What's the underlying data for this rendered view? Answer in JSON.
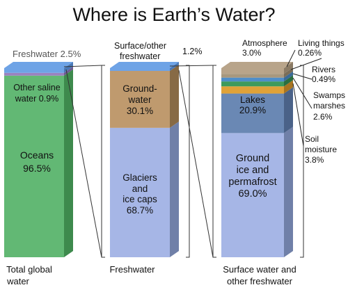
{
  "title": "Where is Earth’s Water?",
  "chart_data": {
    "type": "bar",
    "title": "Where is Earth’s Water?",
    "unit": "%",
    "bars": [
      {
        "name": "Total global water",
        "label_lines": [
          "Total global",
          "water"
        ],
        "segments": [
          {
            "name": "Oceans",
            "value": 96.5,
            "label_lines": [
              "Oceans",
              "96.5%"
            ],
            "label_inside": true,
            "front": "#62b874",
            "side": "#3e8a4d",
            "top": null
          },
          {
            "name": "Other saline water",
            "value": 0.9,
            "label_lines": [
              "Other saline",
              "water 0.9%"
            ],
            "label_inside": true,
            "front": "#9a82bf",
            "side": "#6e5a92",
            "top": null
          },
          {
            "name": "Freshwater",
            "value": 2.5,
            "label_lines": [
              "Freshwater 2.5%"
            ],
            "label_inside": false,
            "front": "#6ea3e6",
            "side": "#4a78b6",
            "top": "#6ea3e6"
          }
        ]
      },
      {
        "name": "Freshwater",
        "label_lines": [
          "Freshwater"
        ],
        "segments": [
          {
            "name": "Glaciers and ice caps",
            "value": 68.7,
            "label_lines": [
              "Glaciers",
              "and",
              "ice caps",
              "68.7%"
            ],
            "label_inside": true,
            "front": "#a6b6e6",
            "side": "#7080a8",
            "top": null
          },
          {
            "name": "Ground-water",
            "value": 30.1,
            "label_lines": [
              "Ground-",
              "water",
              "30.1%"
            ],
            "label_inside": true,
            "front": "#bf9a6e",
            "side": "#876a45",
            "top": null
          },
          {
            "name": "Surface/other freshwater",
            "value": 1.2,
            "label_lines": [
              "Surface/other",
              "freshwater"
            ],
            "value_label": "1.2%",
            "label_inside": false,
            "front": "#6ea3e6",
            "side": "#4a78b6",
            "top": "#6ea3e6"
          }
        ]
      },
      {
        "name": "Surface water and other freshwater",
        "label_lines": [
          "Surface water and",
          "other freshwater"
        ],
        "segments": [
          {
            "name": "Ground ice and permafrost",
            "value": 69.0,
            "label_lines": [
              "Ground",
              "ice and",
              "permafrost",
              "69.0%"
            ],
            "label_inside": true,
            "front": "#a6b6e6",
            "side": "#7080a8",
            "top": null
          },
          {
            "name": "Lakes",
            "value": 20.9,
            "label_lines": [
              "Lakes",
              "20.9%"
            ],
            "label_inside": true,
            "front": "#6a88b4",
            "side": "#4a6288",
            "top": null
          },
          {
            "name": "Soil moisture",
            "value": 3.8,
            "label_lines": [
              "Soil",
              "moisture",
              "3.8%"
            ],
            "label_inside": false,
            "front": "#e0a238",
            "side": "#a87420",
            "top": null
          },
          {
            "name": "Swamps, marshes",
            "value": 2.6,
            "label_lines": [
              "Swamps",
              "marshes",
              "2.6%"
            ],
            "label_inside": false,
            "front": "#3e9a5c",
            "side": "#2a6e40",
            "top": null
          },
          {
            "name": "Rivers",
            "value": 0.49,
            "label_lines": [
              "Rivers",
              "0.49%"
            ],
            "label_inside": false,
            "front": "#4f8ec9",
            "side": "#3a6a98",
            "top": null
          },
          {
            "name": "Living things",
            "value": 0.26,
            "label_lines": [
              "Living things",
              "0.26%"
            ],
            "label_inside": false,
            "front": "#a8987e",
            "side": "#7a6d58",
            "top": null
          },
          {
            "name": "Atmosphere",
            "value": 3.0,
            "label_lines": [
              "Atmosphere",
              "3.0%"
            ],
            "label_inside": false,
            "front": "#b8a48a",
            "side": "#8a7a64",
            "top": "#b8a48a"
          }
        ]
      }
    ]
  }
}
